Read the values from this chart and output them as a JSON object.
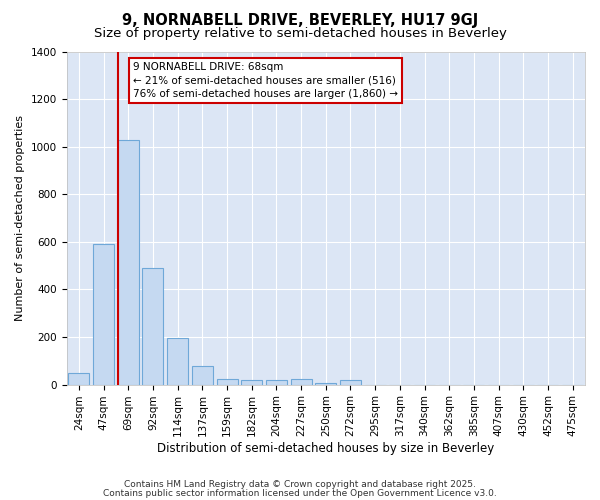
{
  "title1": "9, NORNABELL DRIVE, BEVERLEY, HU17 9GJ",
  "title2": "Size of property relative to semi-detached houses in Beverley",
  "xlabel": "Distribution of semi-detached houses by size in Beverley",
  "ylabel": "Number of semi-detached properties",
  "categories": [
    "24sqm",
    "47sqm",
    "69sqm",
    "92sqm",
    "114sqm",
    "137sqm",
    "159sqm",
    "182sqm",
    "204sqm",
    "227sqm",
    "250sqm",
    "272sqm",
    "295sqm",
    "317sqm",
    "340sqm",
    "362sqm",
    "385sqm",
    "407sqm",
    "430sqm",
    "452sqm",
    "475sqm"
  ],
  "values": [
    47,
    590,
    1030,
    490,
    195,
    78,
    25,
    18,
    18,
    22,
    5,
    20,
    0,
    0,
    0,
    0,
    0,
    0,
    0,
    0,
    0
  ],
  "bar_color": "#c5d9f1",
  "bar_edge_color": "#6fa8d8",
  "figure_bg_color": "#ffffff",
  "plot_bg_color": "#dce6f5",
  "grid_color": "#ffffff",
  "annotation_line1": "9 NORNABELL DRIVE: 68sqm",
  "annotation_line2": "← 21% of semi-detached houses are smaller (516)",
  "annotation_line3": "76% of semi-detached houses are larger (1,860) →",
  "red_line_bin": 2,
  "red_color": "#cc0000",
  "ylim": [
    0,
    1400
  ],
  "yticks": [
    0,
    200,
    400,
    600,
    800,
    1000,
    1200,
    1400
  ],
  "footer1": "Contains HM Land Registry data © Crown copyright and database right 2025.",
  "footer2": "Contains public sector information licensed under the Open Government Licence v3.0.",
  "title1_fontsize": 10.5,
  "title2_fontsize": 9.5,
  "xlabel_fontsize": 8.5,
  "ylabel_fontsize": 8,
  "tick_fontsize": 7.5,
  "annot_fontsize": 7.5,
  "footer_fontsize": 6.5
}
